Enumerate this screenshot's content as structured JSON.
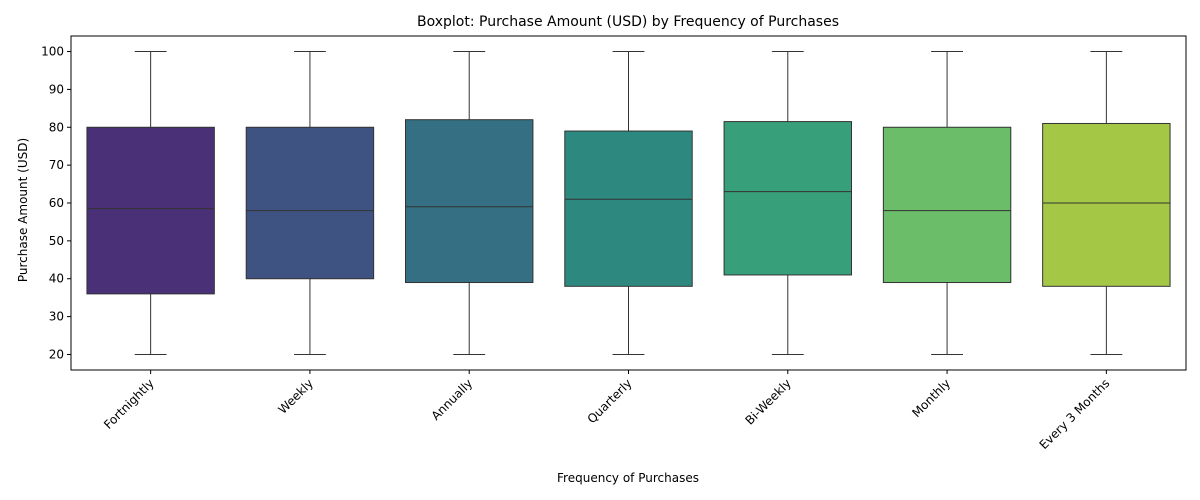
{
  "chart_data": {
    "type": "boxplot",
    "title": "Boxplot: Purchase Amount (USD) by Frequency of Purchases",
    "xlabel": "Frequency of Purchases",
    "ylabel": "Purchase Amount (USD)",
    "ylim": [
      15.9,
      104.1
    ],
    "yticks": [
      20,
      30,
      40,
      50,
      60,
      70,
      80,
      90,
      100
    ],
    "categories": [
      "Fortnightly",
      "Weekly",
      "Annually",
      "Quarterly",
      "Bi-Weekly",
      "Monthly",
      "Every 3 Months"
    ],
    "boxes": [
      {
        "min": 20,
        "q1": 36,
        "median": 58.5,
        "q3": 80,
        "max": 100
      },
      {
        "min": 20,
        "q1": 40,
        "median": 58,
        "q3": 80,
        "max": 100
      },
      {
        "min": 20,
        "q1": 39,
        "median": 59,
        "q3": 82,
        "max": 100
      },
      {
        "min": 20,
        "q1": 38,
        "median": 61,
        "q3": 79,
        "max": 100
      },
      {
        "min": 20,
        "q1": 41,
        "median": 63,
        "q3": 81.5,
        "max": 100
      },
      {
        "min": 20,
        "q1": 39,
        "median": 58,
        "q3": 80,
        "max": 100
      },
      {
        "min": 20,
        "q1": 38,
        "median": 60,
        "q3": 81,
        "max": 100
      }
    ],
    "colors": [
      "#4a3077",
      "#3f5383",
      "#346f83",
      "#2d8880",
      "#37a07a",
      "#6bbd6a",
      "#a4c846"
    ],
    "grid": false,
    "legend": "none"
  }
}
